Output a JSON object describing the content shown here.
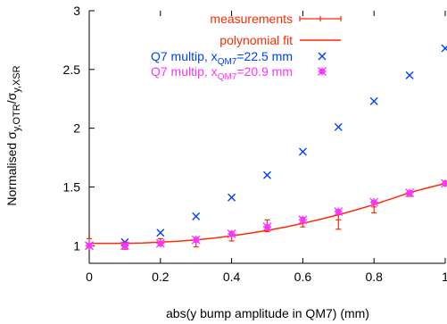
{
  "chart_data": {
    "type": "scatter",
    "title": "",
    "xlabel": "abs(y bump amplitude in QM7) (mm)",
    "ylabel": {
      "main": "Normalised σ",
      "sub1": "y,OTR",
      "slash": "/σ",
      "sub2": "y,XSR"
    },
    "xlim": [
      0,
      1
    ],
    "ylim": [
      0.85,
      3
    ],
    "xticks": [
      "0",
      "0.2",
      "0.4",
      "0.6",
      "0.8",
      "1"
    ],
    "yticks": [
      "1",
      "1.5",
      "2",
      "2.5",
      "3"
    ],
    "xtick_values": [
      0,
      0.2,
      0.4,
      0.6,
      0.8,
      1
    ],
    "ytick_values": [
      1,
      1.5,
      2,
      2.5,
      3
    ],
    "grid": false,
    "legend_position": "top-left",
    "legend": [
      {
        "label": "measurements",
        "color": "#ff2a00"
      },
      {
        "label": "polynomial fit",
        "color": "#ff2a00"
      },
      {
        "label_main": "Q7 multip, x",
        "label_sub": "QM7",
        "label_tail": "=22.5 mm",
        "color": "#0040ff"
      },
      {
        "label_main": "Q7 multip, x",
        "label_sub": "QM7",
        "label_tail": "=20.9 mm",
        "color": "#ff33ff"
      }
    ],
    "series": [
      {
        "name": "measurements",
        "type": "errorbar",
        "color": "#ff2a00",
        "points": [
          {
            "x": 0.0,
            "y": 1.02,
            "err": 0.04
          },
          {
            "x": 0.1,
            "y": 1.0,
            "err": 0.03
          },
          {
            "x": 0.2,
            "y": 1.03,
            "err": 0.03
          },
          {
            "x": 0.3,
            "y": 1.03,
            "err": 0.04
          },
          {
            "x": 0.4,
            "y": 1.08,
            "err": 0.04
          },
          {
            "x": 0.5,
            "y": 1.17,
            "err": 0.05
          },
          {
            "x": 0.6,
            "y": 1.2,
            "err": 0.04
          },
          {
            "x": 0.7,
            "y": 1.22,
            "err": 0.08
          },
          {
            "x": 0.8,
            "y": 1.33,
            "err": 0.05
          },
          {
            "x": 0.9,
            "y": 1.44,
            "err": 0.02
          },
          {
            "x": 1.0,
            "y": 1.53,
            "err": 0.02
          }
        ]
      },
      {
        "name": "polynomial fit",
        "type": "line",
        "color": "#ff2a00",
        "x": [
          0.0,
          0.05,
          0.1,
          0.15,
          0.2,
          0.25,
          0.3,
          0.35,
          0.4,
          0.45,
          0.5,
          0.55,
          0.6,
          0.65,
          0.7,
          0.75,
          0.8,
          0.85,
          0.9,
          0.95,
          1.0
        ],
        "y": [
          1.02,
          1.02,
          1.02,
          1.023,
          1.03,
          1.038,
          1.05,
          1.065,
          1.083,
          1.105,
          1.13,
          1.158,
          1.19,
          1.225,
          1.263,
          1.305,
          1.35,
          1.4,
          1.452,
          1.492,
          1.53
        ]
      },
      {
        "name": "Q7 multip, xQM7=22.5 mm",
        "type": "scatter",
        "marker": "x",
        "color": "#0040ff",
        "x": [
          0.0,
          0.1,
          0.2,
          0.3,
          0.4,
          0.5,
          0.6,
          0.7,
          0.8,
          0.9,
          1.0
        ],
        "y": [
          1.0,
          1.03,
          1.11,
          1.25,
          1.41,
          1.6,
          1.8,
          2.01,
          2.23,
          2.45,
          2.68
        ]
      },
      {
        "name": "Q7 multip, xQM7=20.9 mm",
        "type": "scatter",
        "marker": "boxstar",
        "color": "#ff33ff",
        "x": [
          0.0,
          0.1,
          0.2,
          0.3,
          0.4,
          0.5,
          0.6,
          0.7,
          0.8,
          0.9,
          1.0
        ],
        "y": [
          1.0,
          1.0,
          1.02,
          1.05,
          1.1,
          1.16,
          1.22,
          1.29,
          1.37,
          1.45,
          1.53
        ]
      }
    ]
  }
}
